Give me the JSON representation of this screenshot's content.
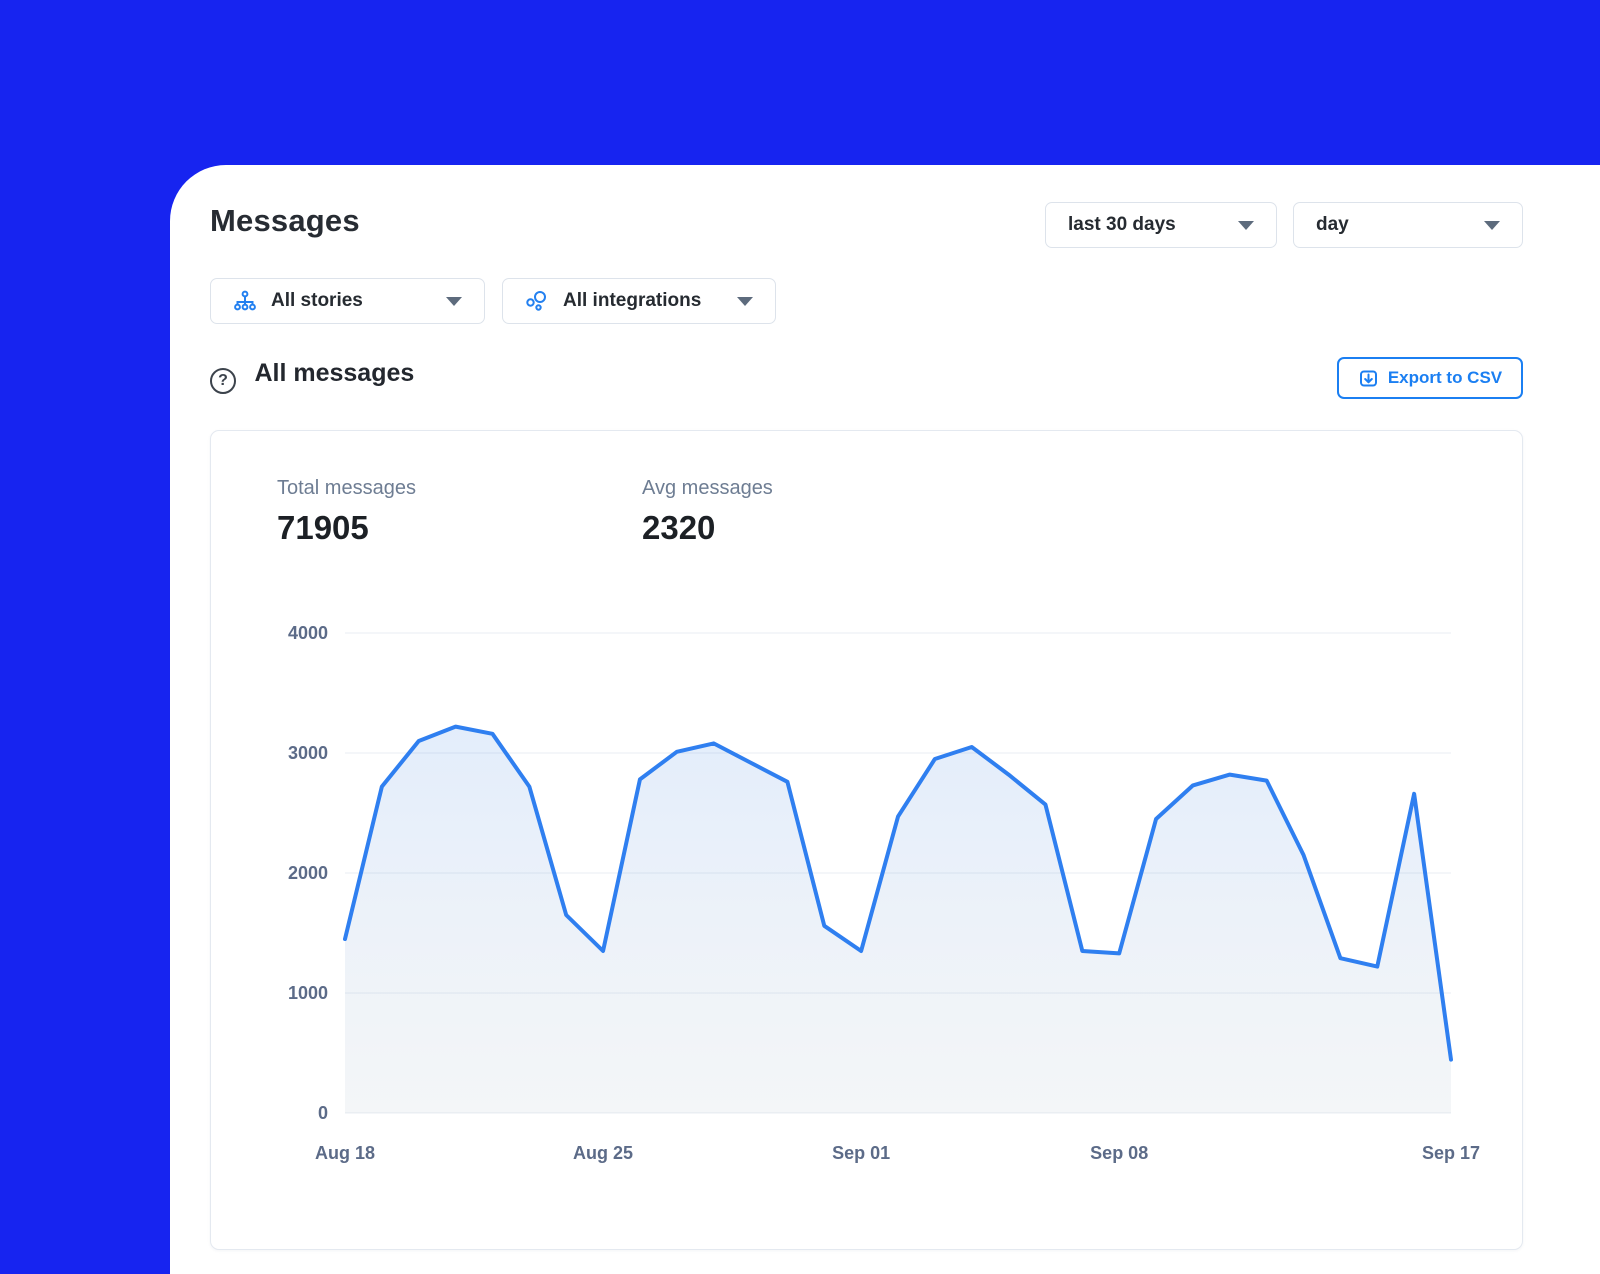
{
  "colors": {
    "background": "#1724f0",
    "accent_blue": "#1b7ff2",
    "line_blue": "#2f7ff0",
    "axis_label": "#5c6b88",
    "grid": "#e9edf3"
  },
  "header": {
    "title": "Messages"
  },
  "toolbar": {
    "date_range_value": "last 30 days",
    "granularity_value": "day"
  },
  "filters": {
    "stories_label": "All stories",
    "integrations_label": "All integrations"
  },
  "section": {
    "title": "All messages",
    "help_glyph": "?",
    "export_label": "Export to CSV"
  },
  "stats": [
    {
      "label": "Total messages",
      "value": "71905"
    },
    {
      "label": "Avg messages",
      "value": "2320"
    }
  ],
  "chart_data": {
    "type": "area",
    "title": "All messages",
    "x": [
      "Aug 18",
      "Aug 19",
      "Aug 20",
      "Aug 21",
      "Aug 22",
      "Aug 23",
      "Aug 24",
      "Aug 25",
      "Aug 26",
      "Aug 27",
      "Aug 28",
      "Aug 29",
      "Aug 30",
      "Aug 31",
      "Sep 01",
      "Sep 02",
      "Sep 03",
      "Sep 04",
      "Sep 05",
      "Sep 06",
      "Sep 07",
      "Sep 08",
      "Sep 09",
      "Sep 10",
      "Sep 11",
      "Sep 12",
      "Sep 13",
      "Sep 14",
      "Sep 15",
      "Sep 16",
      "Sep 17"
    ],
    "values": [
      1450,
      2720,
      3100,
      3220,
      3160,
      2720,
      1650,
      1350,
      2780,
      3010,
      3080,
      2920,
      2760,
      1560,
      1350,
      2470,
      2950,
      3050,
      2820,
      2570,
      1350,
      1330,
      2450,
      2730,
      2820,
      2770,
      2150,
      1290,
      1220,
      2660,
      445
    ],
    "x_tick_labels": [
      "Aug 18",
      "Aug 25",
      "Sep 01",
      "Sep 08",
      "Sep 17"
    ],
    "x_tick_positions": [
      0,
      7,
      14,
      21,
      30
    ],
    "y_ticks": [
      0,
      1000,
      2000,
      3000,
      4000
    ],
    "ylim": [
      0,
      4000
    ],
    "xlabel": "",
    "ylabel": "",
    "grid": true,
    "legend": false,
    "line_color": "#2f7ff0"
  }
}
